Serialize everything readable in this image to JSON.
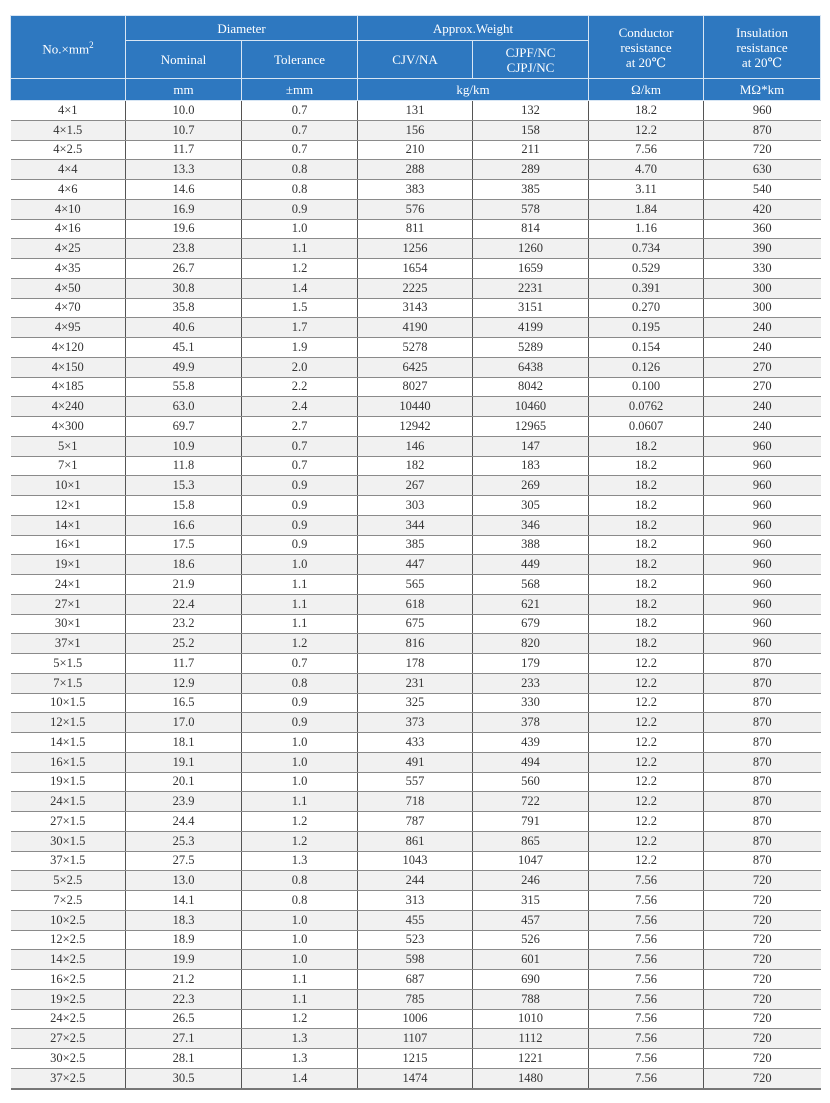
{
  "header": {
    "col1": "No.×mm",
    "col1_sup": "2",
    "diameter": "Diameter",
    "nominal": "Nominal",
    "tolerance": "Tolerance",
    "weight": "Approx.Weight",
    "cjv": "CJV/NA",
    "cjpf_1": "CJPF/NC",
    "cjpf_2": "CJPJ/NC",
    "conductor_1": "Conductor",
    "conductor_2": "resistance",
    "conductor_3": "at 20℃",
    "insulation_1": "Insulation",
    "insulation_2": "resistance",
    "insulation_3": "at 20℃",
    "unit_mm": "mm",
    "unit_tol": "±mm",
    "unit_weight": "kg/km",
    "unit_ohm": "Ω/km",
    "unit_mohm": "MΩ*km"
  },
  "header_color": "#2e78c0",
  "rows": [
    [
      "4×1",
      "10.0",
      "0.7",
      "131",
      "132",
      "18.2",
      "960"
    ],
    [
      "4×1.5",
      "10.7",
      "0.7",
      "156",
      "158",
      "12.2",
      "870"
    ],
    [
      "4×2.5",
      "11.7",
      "0.7",
      "210",
      "211",
      "7.56",
      "720"
    ],
    [
      "4×4",
      "13.3",
      "0.8",
      "288",
      "289",
      "4.70",
      "630"
    ],
    [
      "4×6",
      "14.6",
      "0.8",
      "383",
      "385",
      "3.11",
      "540"
    ],
    [
      "4×10",
      "16.9",
      "0.9",
      "576",
      "578",
      "1.84",
      "420"
    ],
    [
      "4×16",
      "19.6",
      "1.0",
      "811",
      "814",
      "1.16",
      "360"
    ],
    [
      "4×25",
      "23.8",
      "1.1",
      "1256",
      "1260",
      "0.734",
      "390"
    ],
    [
      "4×35",
      "26.7",
      "1.2",
      "1654",
      "1659",
      "0.529",
      "330"
    ],
    [
      "4×50",
      "30.8",
      "1.4",
      "2225",
      "2231",
      "0.391",
      "300"
    ],
    [
      "4×70",
      "35.8",
      "1.5",
      "3143",
      "3151",
      "0.270",
      "300"
    ],
    [
      "4×95",
      "40.6",
      "1.7",
      "4190",
      "4199",
      "0.195",
      "240"
    ],
    [
      "4×120",
      "45.1",
      "1.9",
      "5278",
      "5289",
      "0.154",
      "240"
    ],
    [
      "4×150",
      "49.9",
      "2.0",
      "6425",
      "6438",
      "0.126",
      "270"
    ],
    [
      "4×185",
      "55.8",
      "2.2",
      "8027",
      "8042",
      "0.100",
      "270"
    ],
    [
      "4×240",
      "63.0",
      "2.4",
      "10440",
      "10460",
      "0.0762",
      "240"
    ],
    [
      "4×300",
      "69.7",
      "2.7",
      "12942",
      "12965",
      "0.0607",
      "240"
    ],
    [
      "5×1",
      "10.9",
      "0.7",
      "146",
      "147",
      "18.2",
      "960"
    ],
    [
      "7×1",
      "11.8",
      "0.7",
      "182",
      "183",
      "18.2",
      "960"
    ],
    [
      "10×1",
      "15.3",
      "0.9",
      "267",
      "269",
      "18.2",
      "960"
    ],
    [
      "12×1",
      "15.8",
      "0.9",
      "303",
      "305",
      "18.2",
      "960"
    ],
    [
      "14×1",
      "16.6",
      "0.9",
      "344",
      "346",
      "18.2",
      "960"
    ],
    [
      "16×1",
      "17.5",
      "0.9",
      "385",
      "388",
      "18.2",
      "960"
    ],
    [
      "19×1",
      "18.6",
      "1.0",
      "447",
      "449",
      "18.2",
      "960"
    ],
    [
      "24×1",
      "21.9",
      "1.1",
      "565",
      "568",
      "18.2",
      "960"
    ],
    [
      "27×1",
      "22.4",
      "1.1",
      "618",
      "621",
      "18.2",
      "960"
    ],
    [
      "30×1",
      "23.2",
      "1.1",
      "675",
      "679",
      "18.2",
      "960"
    ],
    [
      "37×1",
      "25.2",
      "1.2",
      "816",
      "820",
      "18.2",
      "960"
    ],
    [
      "5×1.5",
      "11.7",
      "0.7",
      "178",
      "179",
      "12.2",
      "870"
    ],
    [
      "7×1.5",
      "12.9",
      "0.8",
      "231",
      "233",
      "12.2",
      "870"
    ],
    [
      "10×1.5",
      "16.5",
      "0.9",
      "325",
      "330",
      "12.2",
      "870"
    ],
    [
      "12×1.5",
      "17.0",
      "0.9",
      "373",
      "378",
      "12.2",
      "870"
    ],
    [
      "14×1.5",
      "18.1",
      "1.0",
      "433",
      "439",
      "12.2",
      "870"
    ],
    [
      "16×1.5",
      "19.1",
      "1.0",
      "491",
      "494",
      "12.2",
      "870"
    ],
    [
      "19×1.5",
      "20.1",
      "1.0",
      "557",
      "560",
      "12.2",
      "870"
    ],
    [
      "24×1.5",
      "23.9",
      "1.1",
      "718",
      "722",
      "12.2",
      "870"
    ],
    [
      "27×1.5",
      "24.4",
      "1.2",
      "787",
      "791",
      "12.2",
      "870"
    ],
    [
      "30×1.5",
      "25.3",
      "1.2",
      "861",
      "865",
      "12.2",
      "870"
    ],
    [
      "37×1.5",
      "27.5",
      "1.3",
      "1043",
      "1047",
      "12.2",
      "870"
    ],
    [
      "5×2.5",
      "13.0",
      "0.8",
      "244",
      "246",
      "7.56",
      "720"
    ],
    [
      "7×2.5",
      "14.1",
      "0.8",
      "313",
      "315",
      "7.56",
      "720"
    ],
    [
      "10×2.5",
      "18.3",
      "1.0",
      "455",
      "457",
      "7.56",
      "720"
    ],
    [
      "12×2.5",
      "18.9",
      "1.0",
      "523",
      "526",
      "7.56",
      "720"
    ],
    [
      "14×2.5",
      "19.9",
      "1.0",
      "598",
      "601",
      "7.56",
      "720"
    ],
    [
      "16×2.5",
      "21.2",
      "1.1",
      "687",
      "690",
      "7.56",
      "720"
    ],
    [
      "19×2.5",
      "22.3",
      "1.1",
      "785",
      "788",
      "7.56",
      "720"
    ],
    [
      "24×2.5",
      "26.5",
      "1.2",
      "1006",
      "1010",
      "7.56",
      "720"
    ],
    [
      "27×2.5",
      "27.1",
      "1.3",
      "1107",
      "1112",
      "7.56",
      "720"
    ],
    [
      "30×2.5",
      "28.1",
      "1.3",
      "1215",
      "1221",
      "7.56",
      "720"
    ],
    [
      "37×2.5",
      "30.5",
      "1.4",
      "1474",
      "1480",
      "7.56",
      "720"
    ]
  ]
}
